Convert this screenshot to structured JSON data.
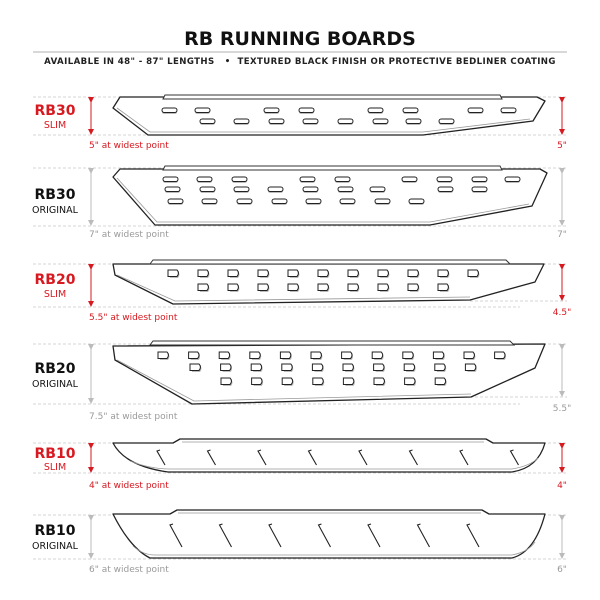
{
  "header": {
    "title": "RB RUNNING BOARDS",
    "subtitle": "AVAILABLE IN 48\" - 87\" LENGTHS   •  TEXTURED BLACK FINISH OR PROTECTIVE BEDLINER COATING"
  },
  "colors": {
    "accent": "#d71920",
    "muted": "#9a9a9a",
    "text": "#111111"
  },
  "boards": [
    {
      "model": "RB30",
      "variant": "SLIM",
      "widest": "5\" at widest point",
      "end": "5\"",
      "highlight": true
    },
    {
      "model": "RB30",
      "variant": "ORIGINAL",
      "widest": "7\" at widest point",
      "end": "7\"",
      "highlight": false
    },
    {
      "model": "RB20",
      "variant": "SLIM",
      "widest": "5.5\" at widest point",
      "end": "4.5\"",
      "highlight": true
    },
    {
      "model": "RB20",
      "variant": "ORIGINAL",
      "widest": "7.5\" at widest point",
      "end": "5.5\"",
      "highlight": false
    },
    {
      "model": "RB10",
      "variant": "SLIM",
      "widest": "4\" at widest point",
      "end": "4\"",
      "highlight": true
    },
    {
      "model": "RB10",
      "variant": "ORIGINAL",
      "widest": "6\" at widest point",
      "end": "6\"",
      "highlight": false
    }
  ]
}
